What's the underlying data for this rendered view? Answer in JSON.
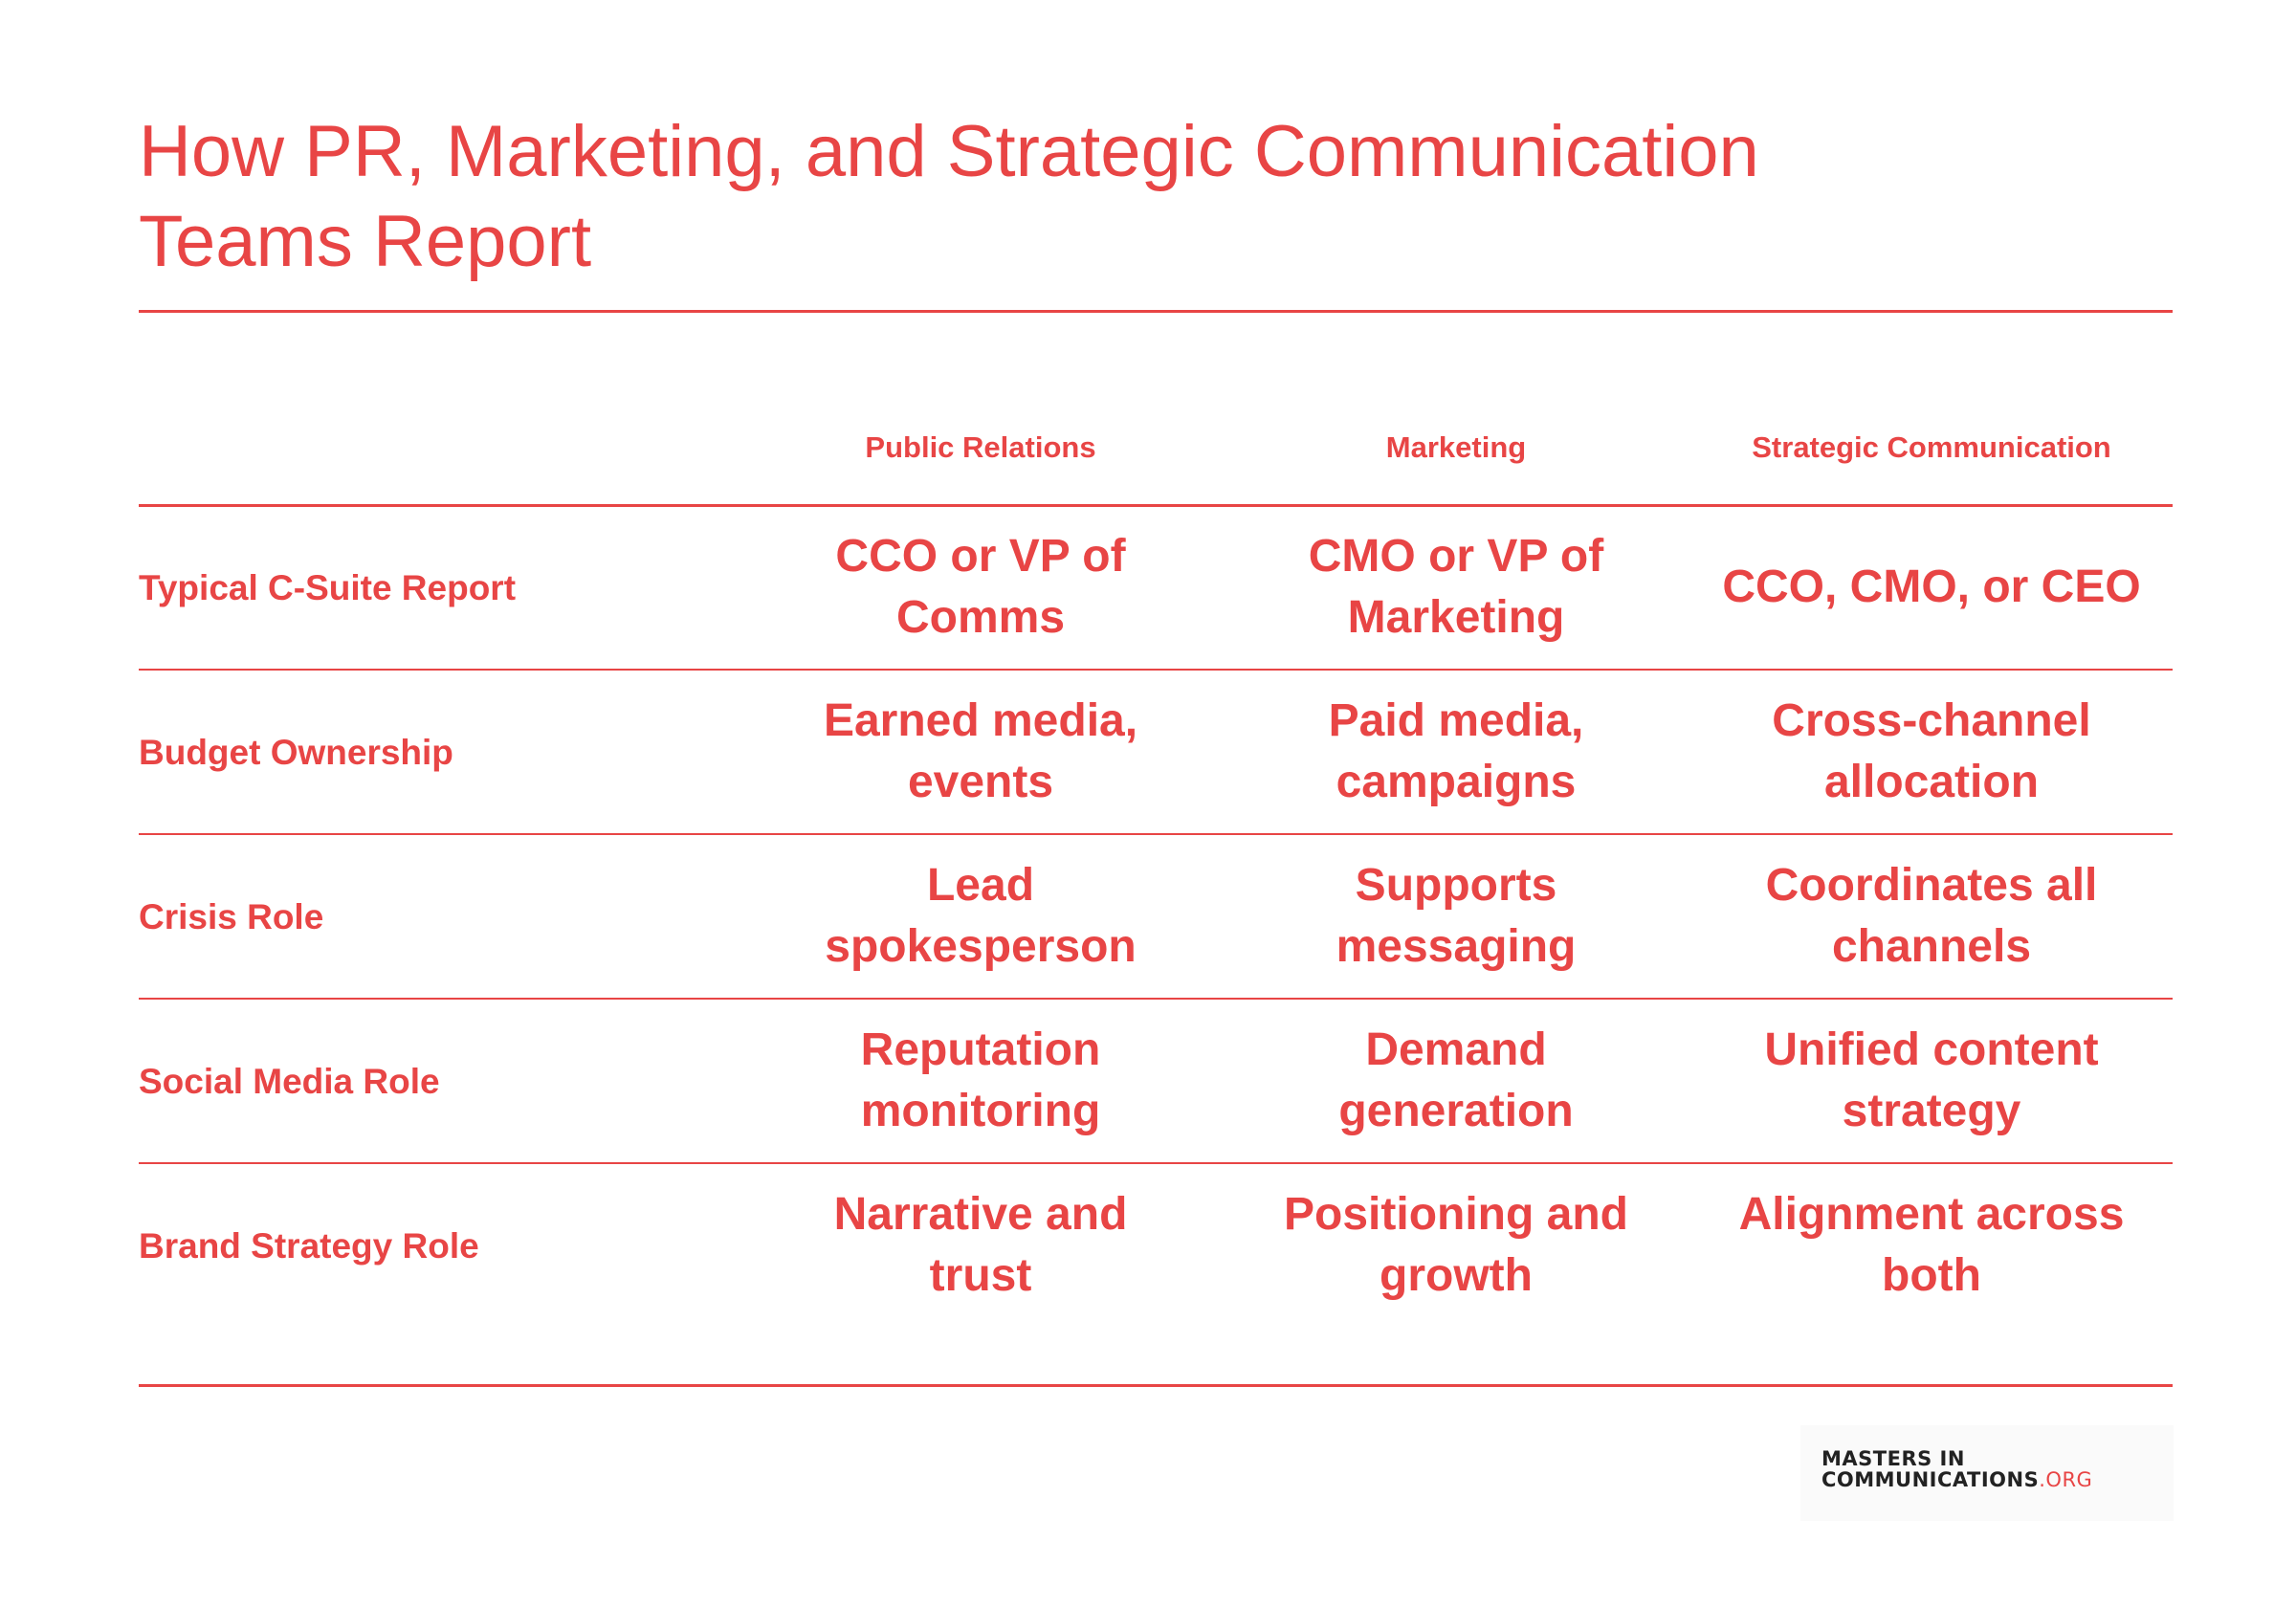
{
  "title": {
    "line1": "How PR, Marketing, and Strategic Communication",
    "line2": "Teams Report"
  },
  "columns": [
    "Public Relations",
    "Marketing",
    "Strategic Communication"
  ],
  "rows": [
    {
      "label": "Typical C-Suite Report",
      "cells": [
        [
          "CCO or VP of",
          "Comms"
        ],
        [
          "CMO or VP of",
          "Marketing"
        ],
        [
          "CCO, CMO, or CEO"
        ]
      ]
    },
    {
      "label": "Budget Ownership",
      "cells": [
        [
          "Earned media,",
          "events"
        ],
        [
          "Paid media,",
          "campaigns"
        ],
        [
          "Cross-channel",
          "allocation"
        ]
      ]
    },
    {
      "label": "Crisis Role",
      "cells": [
        [
          "Lead",
          "spokesperson"
        ],
        [
          "Supports",
          "messaging"
        ],
        [
          "Coordinates all",
          "channels"
        ]
      ]
    },
    {
      "label": "Social Media Role",
      "cells": [
        [
          "Reputation",
          "monitoring"
        ],
        [
          "Demand",
          "generation"
        ],
        [
          "Unified content",
          "strategy"
        ]
      ]
    },
    {
      "label": "Brand Strategy Role",
      "cells": [
        [
          "Narrative and",
          "trust"
        ],
        [
          "Positioning and",
          "growth"
        ],
        [
          "Alignment across",
          "both"
        ]
      ]
    }
  ],
  "logo": {
    "line1": "MASTERS IN",
    "line2_main": "COMMUNICATIONS",
    "line2_suffix": ".ORG"
  },
  "colors": {
    "accent": "#e84545",
    "logo_text": "#222222"
  }
}
